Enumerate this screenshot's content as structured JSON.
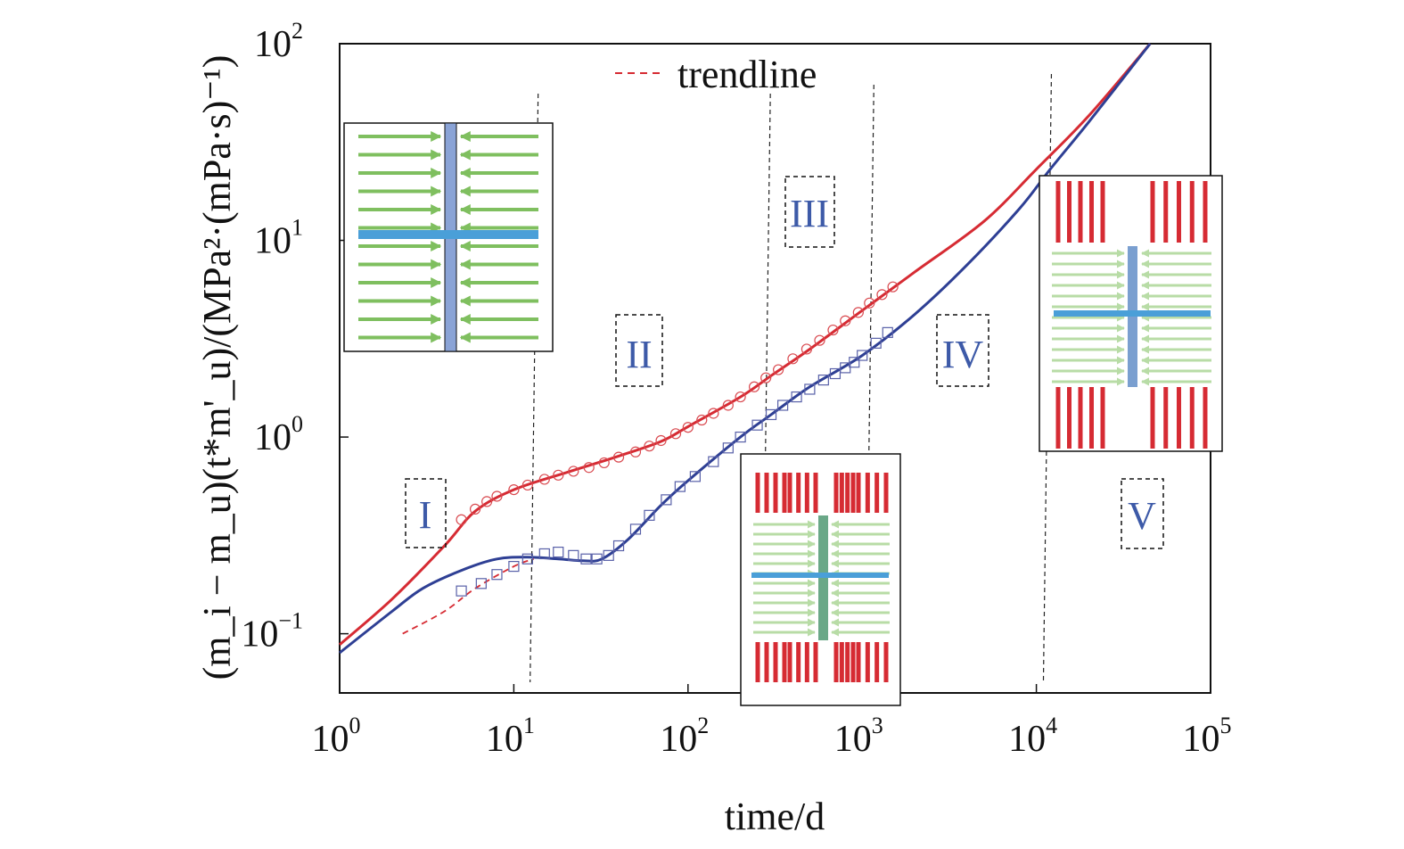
{
  "chart_data": {
    "type": "line",
    "xscale": "log",
    "yscale": "log",
    "xlim": [
      1,
      100000
    ],
    "ylim": [
      0.05,
      100
    ],
    "xlabel": "time/d",
    "ylabel": "(m_i − m_u)(t*m'_u)/(MPa²·(mPa·s)⁻¹)",
    "x_ticks": [
      {
        "base": "10",
        "exp": "0",
        "value": 1
      },
      {
        "base": "10",
        "exp": "1",
        "value": 10
      },
      {
        "base": "10",
        "exp": "2",
        "value": 100
      },
      {
        "base": "10",
        "exp": "3",
        "value": 1000
      },
      {
        "base": "10",
        "exp": "4",
        "value": 10000
      },
      {
        "base": "10",
        "exp": "5",
        "value": 100000
      }
    ],
    "y_ticks": [
      {
        "base": "10",
        "exp": "−1",
        "value": 0.1
      },
      {
        "base": "10",
        "exp": "0",
        "value": 1
      },
      {
        "base": "10",
        "exp": "1",
        "value": 10
      },
      {
        "base": "10",
        "exp": "2",
        "value": 100
      }
    ],
    "legend": {
      "label": "trendline",
      "position": "top-center"
    },
    "regions": [
      "I",
      "II",
      "III",
      "IV",
      "V"
    ],
    "boundaries": [
      13,
      280,
      1100,
      11500
    ],
    "colors": {
      "red": "#d62b33",
      "blue": "#2e3f94",
      "green": "#7fbf5f",
      "lightgreen": "#b8dca6",
      "fracture": "#5aa5d8"
    },
    "series": [
      {
        "color": "red",
        "style": "solid",
        "points": [
          [
            1,
            0.088
          ],
          [
            2,
            0.15
          ],
          [
            4,
            0.28
          ],
          [
            6,
            0.42
          ],
          [
            10,
            0.54
          ],
          [
            20,
            0.66
          ],
          [
            40,
            0.8
          ],
          [
            70,
            0.95
          ],
          [
            100,
            1.13
          ],
          [
            200,
            1.6
          ],
          [
            300,
            2.05
          ],
          [
            500,
            2.8
          ],
          [
            1000,
            4.4
          ],
          [
            2000,
            6.9
          ],
          [
            5000,
            12.5
          ],
          [
            10000,
            23.0
          ],
          [
            20000,
            43.0
          ],
          [
            45000,
            100
          ]
        ]
      },
      {
        "color": "blue",
        "style": "solid",
        "points": [
          [
            1,
            0.08
          ],
          [
            2,
            0.13
          ],
          [
            3,
            0.17
          ],
          [
            5,
            0.21
          ],
          [
            8,
            0.24
          ],
          [
            12,
            0.245
          ],
          [
            18,
            0.24
          ],
          [
            25,
            0.235
          ],
          [
            32,
            0.24
          ],
          [
            45,
            0.3
          ],
          [
            70,
            0.45
          ],
          [
            100,
            0.6
          ],
          [
            200,
            1.0
          ],
          [
            300,
            1.3
          ],
          [
            500,
            1.8
          ],
          [
            1000,
            2.6
          ],
          [
            2000,
            4.2
          ],
          [
            4000,
            7.5
          ],
          [
            8000,
            14.5
          ],
          [
            12000,
            23.0
          ],
          [
            20000,
            40.0
          ],
          [
            45000,
            100
          ]
        ]
      },
      {
        "color": "red",
        "style": "dashed",
        "points": [
          [
            2.3,
            0.1
          ],
          [
            4,
            0.13
          ],
          [
            6,
            0.17
          ],
          [
            10,
            0.22
          ],
          [
            13,
            0.24
          ]
        ]
      },
      {
        "color": "blue",
        "style": "markers-square",
        "points": [
          [
            5,
            0.165
          ],
          [
            6.5,
            0.18
          ],
          [
            8,
            0.2
          ],
          [
            10,
            0.22
          ],
          [
            12,
            0.24
          ],
          [
            15,
            0.255
          ],
          [
            18,
            0.26
          ],
          [
            22,
            0.25
          ],
          [
            26,
            0.24
          ],
          [
            30,
            0.24
          ],
          [
            35,
            0.25
          ],
          [
            40,
            0.28
          ],
          [
            50,
            0.34
          ],
          [
            60,
            0.4
          ],
          [
            75,
            0.48
          ],
          [
            90,
            0.56
          ],
          [
            110,
            0.63
          ],
          [
            140,
            0.75
          ],
          [
            170,
            0.88
          ],
          [
            200,
            1.0
          ],
          [
            250,
            1.15
          ],
          [
            300,
            1.3
          ],
          [
            350,
            1.45
          ],
          [
            420,
            1.6
          ],
          [
            500,
            1.75
          ],
          [
            600,
            1.95
          ],
          [
            700,
            2.1
          ],
          [
            800,
            2.25
          ],
          [
            900,
            2.4
          ],
          [
            1000,
            2.6
          ],
          [
            1200,
            3.0
          ],
          [
            1400,
            3.4
          ]
        ]
      },
      {
        "color": "red",
        "style": "markers-circle",
        "points": [
          [
            5,
            0.38
          ],
          [
            6,
            0.43
          ],
          [
            7,
            0.47
          ],
          [
            8,
            0.5
          ],
          [
            10,
            0.54
          ],
          [
            12,
            0.57
          ],
          [
            15,
            0.61
          ],
          [
            18,
            0.64
          ],
          [
            22,
            0.67
          ],
          [
            27,
            0.7
          ],
          [
            33,
            0.74
          ],
          [
            40,
            0.79
          ],
          [
            50,
            0.84
          ],
          [
            60,
            0.9
          ],
          [
            70,
            0.96
          ],
          [
            85,
            1.04
          ],
          [
            100,
            1.12
          ],
          [
            120,
            1.22
          ],
          [
            140,
            1.32
          ],
          [
            170,
            1.45
          ],
          [
            200,
            1.6
          ],
          [
            240,
            1.8
          ],
          [
            280,
            2.0
          ],
          [
            330,
            2.2
          ],
          [
            400,
            2.5
          ],
          [
            480,
            2.8
          ],
          [
            570,
            3.1
          ],
          [
            680,
            3.5
          ],
          [
            800,
            3.9
          ],
          [
            950,
            4.3
          ],
          [
            1100,
            4.8
          ],
          [
            1300,
            5.3
          ],
          [
            1500,
            5.8
          ]
        ]
      }
    ]
  }
}
